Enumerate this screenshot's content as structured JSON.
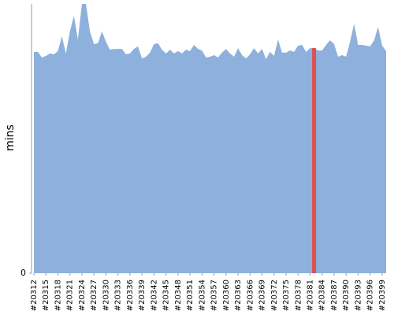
{
  "chart_data": {
    "type": "area",
    "y_label": "mins",
    "categories": [
      "#20312",
      null,
      null,
      "#20315",
      null,
      null,
      "#20318",
      null,
      null,
      "#20321",
      null,
      null,
      "#20324",
      null,
      null,
      "#20327",
      null,
      null,
      "#20330",
      null,
      null,
      "#20333",
      null,
      null,
      "#20336",
      null,
      null,
      "#20339",
      null,
      null,
      "#20342",
      null,
      null,
      "#20345",
      null,
      null,
      "#20348",
      null,
      null,
      "#20351",
      null,
      null,
      "#20354",
      null,
      null,
      "#20357",
      null,
      null,
      "#20360",
      null,
      null,
      "#20363",
      null,
      null,
      "#20366",
      null,
      null,
      "#20369",
      null,
      null,
      "#20372",
      null,
      null,
      "#20375",
      null,
      null,
      "#20378",
      null,
      null,
      "#20381",
      null,
      null,
      "#20384",
      null,
      null,
      "#20387",
      null,
      null,
      "#20390",
      null,
      null,
      "#20393",
      null,
      null,
      "#20396",
      null,
      null,
      "#20399",
      null
    ],
    "values": [
      82.2,
      82.2,
      80.1,
      80.7,
      81.6,
      81.3,
      82.5,
      88.0,
      81.6,
      89.8,
      95.6,
      86.8,
      100,
      100,
      89.8,
      85.1,
      85.4,
      89.8,
      86.0,
      83.0,
      83.3,
      83.3,
      83.3,
      81.3,
      81.6,
      83.3,
      84.2,
      79.8,
      80.4,
      81.9,
      85.1,
      85.4,
      83.0,
      81.6,
      83.0,
      81.6,
      82.5,
      81.6,
      83.0,
      82.5,
      84.8,
      83.3,
      82.7,
      80.1,
      80.4,
      81.0,
      80.1,
      81.9,
      83.3,
      81.6,
      80.4,
      83.6,
      81.0,
      79.8,
      81.3,
      83.6,
      81.6,
      83.3,
      79.5,
      82.2,
      80.7,
      86.8,
      81.9,
      81.9,
      82.7,
      82.2,
      84.5,
      84.8,
      82.2,
      83.6,
      83.6,
      82.7,
      82.7,
      84.8,
      86.5,
      85.1,
      80.4,
      81.0,
      80.4,
      86.0,
      92.7,
      84.8,
      84.8,
      84.5,
      84.2,
      86.5,
      91.5,
      84.5,
      82.5
    ],
    "color": "#8eb0dc",
    "highlight_index": 70,
    "highlight_color": "#e05050",
    "ylim": [
      0,
      100
    ],
    "yticks": [
      0
    ]
  }
}
